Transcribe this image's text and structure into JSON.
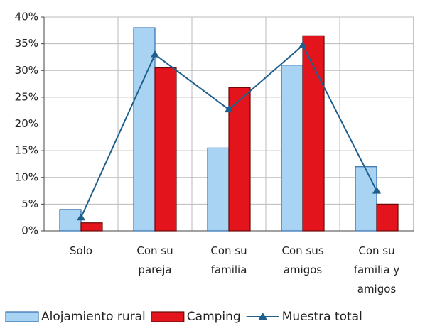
{
  "chart_data": {
    "type": "bar",
    "categories": [
      "Solo",
      "Con su\npareja",
      "Con su\nfamilia",
      "Con sus\namigos",
      "Con su\nfamilia y\namigos"
    ],
    "series": [
      {
        "name": "Alojamiento rural",
        "type": "bar",
        "color": "#a9d3f2",
        "values": [
          4,
          38,
          15.5,
          31,
          12
        ]
      },
      {
        "name": "Camping",
        "type": "bar",
        "color": "#e3141b",
        "values": [
          1.5,
          30.5,
          26.8,
          36.5,
          5
        ]
      },
      {
        "name": "Muestra total",
        "type": "line",
        "color": "#1f5f8b",
        "values": [
          2.5,
          33,
          22.7,
          34.7,
          7.5
        ]
      }
    ],
    "ylim": [
      0,
      40
    ],
    "yticks": [
      {
        "value": 0,
        "label": "0%"
      },
      {
        "value": 5,
        "label": "5%"
      },
      {
        "value": 10,
        "label": "10%"
      },
      {
        "value": 15,
        "label": "15%"
      },
      {
        "value": 20,
        "label": "20%"
      },
      {
        "value": 25,
        "label": "25%"
      },
      {
        "value": 30,
        "label": "30%"
      },
      {
        "value": 35,
        "label": "35%"
      },
      {
        "value": 40,
        "label": "40%"
      }
    ],
    "grid": true,
    "legend": "bottom"
  }
}
